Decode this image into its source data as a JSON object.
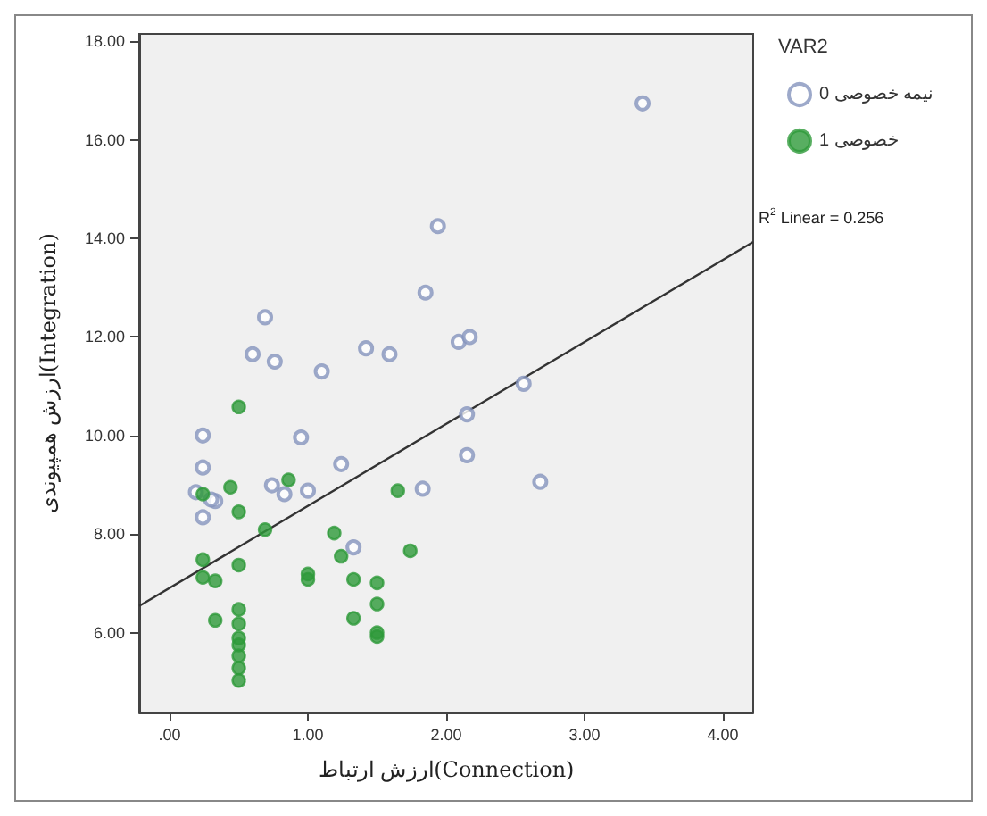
{
  "chart_data": {
    "type": "scatter",
    "xlabel": "ارزش ارتباط(Connection)",
    "ylabel": "ارزش همپیوندی(Integration)",
    "legend_title": "VAR2",
    "xlim": [
      -0.22,
      4.22
    ],
    "ylim": [
      4.38,
      18.15
    ],
    "xticks": [
      {
        "value": 0,
        "label": ".00"
      },
      {
        "value": 1,
        "label": "1.00"
      },
      {
        "value": 2,
        "label": "2.00"
      },
      {
        "value": 3,
        "label": "3.00"
      },
      {
        "value": 4,
        "label": "4.00"
      }
    ],
    "yticks": [
      {
        "value": 6,
        "label": "6.00"
      },
      {
        "value": 8,
        "label": "8.00"
      },
      {
        "value": 10,
        "label": "10.00"
      },
      {
        "value": 12,
        "label": "12.00"
      },
      {
        "value": 14,
        "label": "14.00"
      },
      {
        "value": 16,
        "label": "16.00"
      },
      {
        "value": 18,
        "label": "18.00"
      }
    ],
    "grid": false,
    "legend": "top right",
    "marker": "circle",
    "annotations": [
      {
        "text": "R$^{2}$ Linear = 0.256",
        "x": 4.22,
        "y": 13.93
      }
    ],
    "series": [
      {
        "name": "0 نیمه خصوصی",
        "color": "#8593bd",
        "x": [
          3.42,
          1.94,
          1.85,
          0.69,
          0.6,
          0.76,
          1.1,
          1.42,
          1.59,
          2.09,
          2.17,
          2.56,
          2.68,
          2.15,
          2.15,
          1.83,
          1.33,
          1.24,
          0.95,
          1.0,
          0.74,
          0.83,
          0.24,
          0.24,
          0.19,
          0.33,
          0.3,
          0.24
        ],
        "values": [
          16.74,
          14.25,
          12.9,
          12.4,
          11.65,
          11.5,
          11.3,
          11.77,
          11.65,
          11.9,
          12.0,
          11.05,
          9.06,
          10.43,
          9.6,
          8.92,
          7.73,
          9.42,
          9.96,
          8.88,
          8.99,
          8.81,
          10.0,
          9.35,
          8.85,
          8.67,
          8.7,
          8.34
        ]
      },
      {
        "name": "1 خصوصی",
        "color": "#2e9a3a",
        "x": [
          0.5,
          0.44,
          0.5,
          0.86,
          0.24,
          0.69,
          0.24,
          0.24,
          0.33,
          0.5,
          0.33,
          0.5,
          0.5,
          0.5,
          0.5,
          0.5,
          0.5,
          0.5,
          1.0,
          1.0,
          1.19,
          1.24,
          1.33,
          1.33,
          1.5,
          1.5,
          1.5,
          1.5,
          1.65,
          1.74
        ],
        "values": [
          10.58,
          8.95,
          8.45,
          9.1,
          8.81,
          8.09,
          7.48,
          7.12,
          7.05,
          7.37,
          6.25,
          6.47,
          6.18,
          5.89,
          5.75,
          5.53,
          5.28,
          5.03,
          7.19,
          7.08,
          8.02,
          7.55,
          7.08,
          6.29,
          7.01,
          6.58,
          6.0,
          5.92,
          8.88,
          7.66
        ]
      },
      {
        "type": "line",
        "color": "#333333",
        "marker": "none",
        "x": [
          -0.22,
          4.22
        ],
        "values": [
          6.54,
          13.93
        ]
      }
    ]
  }
}
